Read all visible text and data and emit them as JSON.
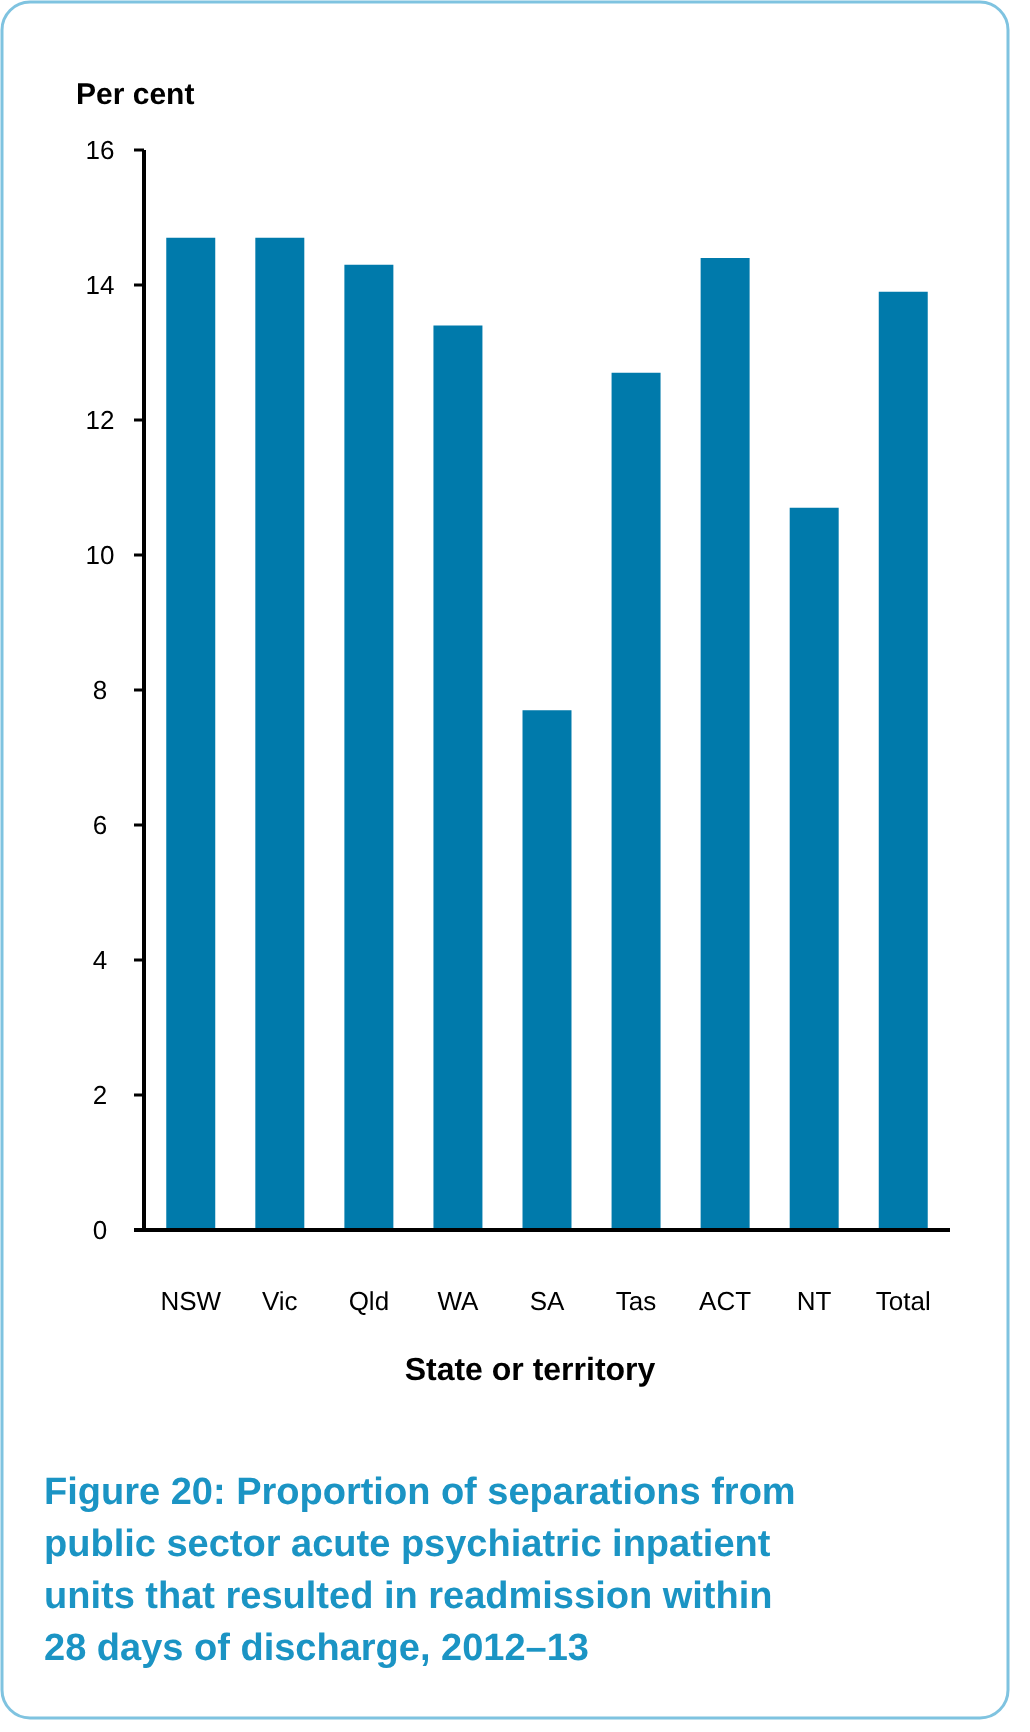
{
  "chart_data": {
    "type": "bar",
    "title": "Figure 20: Proportion of separations from public sector acute psychiatric inpatient units that resulted in readmission within 28 days of discharge, 2012–13",
    "ylabel": "Per cent",
    "xlabel": "State or territory",
    "categories": [
      "NSW",
      "Vic",
      "Qld",
      "WA",
      "SA",
      "Tas",
      "ACT",
      "NT",
      "Total"
    ],
    "values": [
      14.7,
      14.7,
      14.3,
      13.4,
      7.7,
      12.7,
      14.4,
      10.7,
      13.9
    ],
    "color": "#007aab",
    "ylim": [
      0,
      16
    ],
    "yticks": [
      0,
      2,
      4,
      6,
      8,
      10,
      12,
      14,
      16
    ],
    "grid": false
  }
}
